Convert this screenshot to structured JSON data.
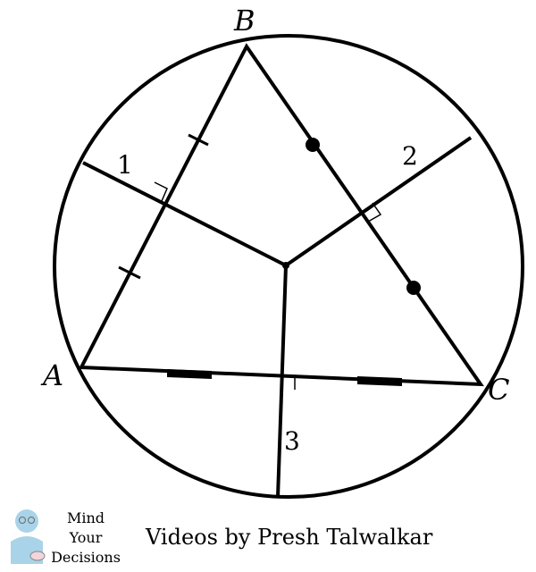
{
  "diagram": {
    "vertices": {
      "a": "A",
      "b": "B",
      "c": "C"
    },
    "segments": {
      "one": "1",
      "two": "2",
      "three": "3"
    }
  },
  "footer": {
    "logo_lines": [
      "Mind",
      "Your",
      "Decisions"
    ],
    "credit": "Videos by Presh Talwalkar"
  }
}
